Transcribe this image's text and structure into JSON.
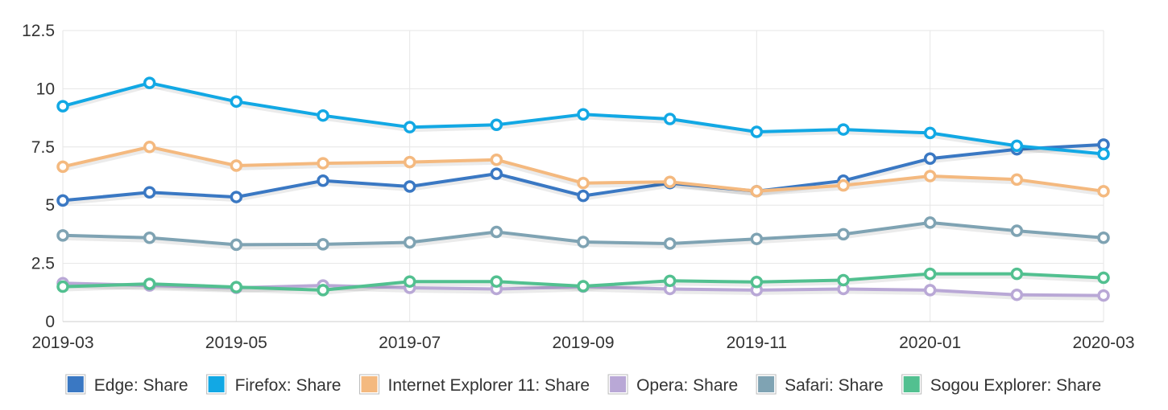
{
  "chart_data": {
    "type": "line",
    "title": "",
    "xlabel": "",
    "ylabel": "",
    "ylim": [
      0,
      12.5
    ],
    "y_ticks": [
      "0",
      "2.5",
      "5",
      "7.5",
      "10",
      "12.5"
    ],
    "y_tick_values": [
      0,
      2.5,
      5,
      7.5,
      10,
      12.5
    ],
    "categories": [
      "2019-03",
      "2019-04",
      "2019-05",
      "2019-06",
      "2019-07",
      "2019-08",
      "2019-09",
      "2019-10",
      "2019-11",
      "2019-12",
      "2020-01",
      "2020-02",
      "2020-03"
    ],
    "x_tick_labels": [
      "2019-03",
      "2019-05",
      "2019-07",
      "2019-09",
      "2019-11",
      "2020-01",
      "2020-03"
    ],
    "x_tick_indices": [
      0,
      2,
      4,
      6,
      8,
      10,
      12
    ],
    "grid": true,
    "legend_position": "bottom",
    "series": [
      {
        "name": "Edge: Share",
        "color": "#3a78c3",
        "values": [
          5.2,
          5.55,
          5.35,
          6.05,
          5.8,
          6.35,
          5.4,
          5.95,
          5.6,
          6.05,
          7.0,
          7.4,
          7.6
        ]
      },
      {
        "name": "Firefox: Share",
        "color": "#12a8e4",
        "values": [
          9.25,
          10.25,
          9.45,
          8.85,
          8.35,
          8.45,
          8.9,
          8.7,
          8.15,
          8.25,
          8.1,
          7.55,
          7.2
        ]
      },
      {
        "name": "Internet Explorer 11: Share",
        "color": "#f4b97f",
        "values": [
          6.65,
          7.5,
          6.7,
          6.8,
          6.85,
          6.95,
          5.95,
          6.0,
          5.6,
          5.85,
          6.25,
          6.1,
          5.6
        ]
      },
      {
        "name": "Opera: Share",
        "color": "#b9a8d6",
        "values": [
          1.65,
          1.55,
          1.45,
          1.55,
          1.45,
          1.4,
          1.5,
          1.4,
          1.35,
          1.4,
          1.35,
          1.15,
          1.12
        ]
      },
      {
        "name": "Safari: Share",
        "color": "#7fa3b3",
        "values": [
          3.7,
          3.6,
          3.3,
          3.32,
          3.4,
          3.85,
          3.42,
          3.35,
          3.55,
          3.75,
          4.25,
          3.9,
          3.6
        ]
      },
      {
        "name": "Sogou Explorer: Share",
        "color": "#52c090",
        "values": [
          1.5,
          1.62,
          1.48,
          1.35,
          1.72,
          1.72,
          1.52,
          1.75,
          1.7,
          1.78,
          2.05,
          2.05,
          1.88
        ]
      }
    ]
  }
}
